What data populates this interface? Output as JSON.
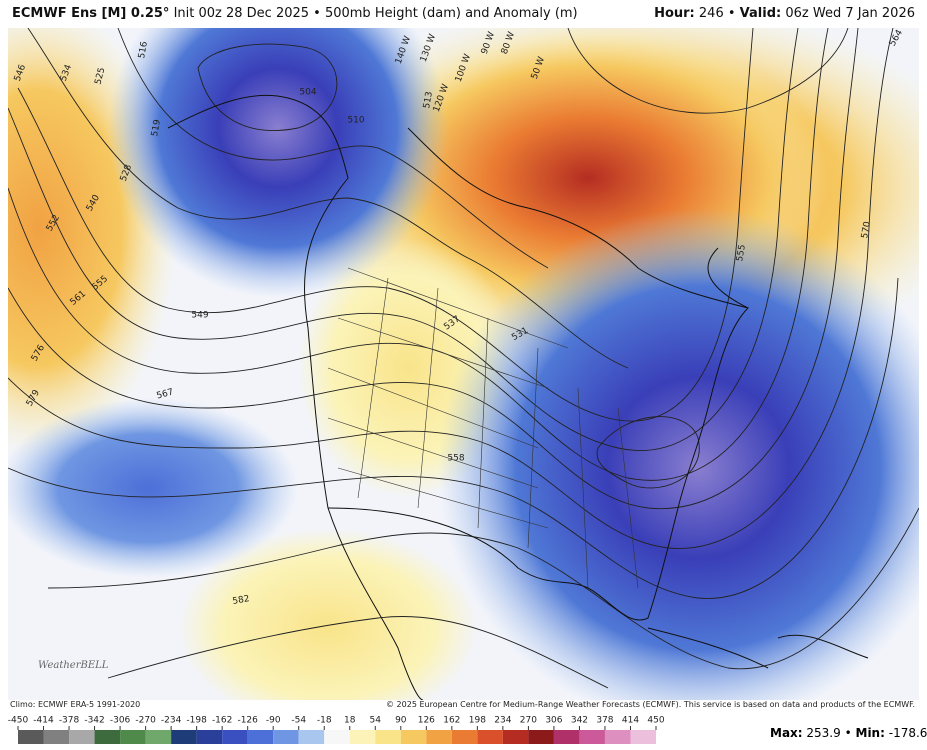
{
  "header": {
    "model": "ECMWF Ens [M] 0.25°",
    "init": "Init 00z 28 Dec 2025 • 500mb Height (dam) and Anomaly (m)",
    "hour_label": "Hour:",
    "hour": "246",
    "valid_label": "Valid:",
    "valid": "06z Wed 7 Jan 2026"
  },
  "map": {
    "contour_labels": [
      "546",
      "534",
      "525",
      "516",
      "519",
      "528",
      "540",
      "552",
      "555",
      "561",
      "576",
      "579",
      "549",
      "567",
      "582",
      "504",
      "510",
      "513",
      "537",
      "531",
      "558",
      "564",
      "570",
      "555"
    ],
    "longitude_labels": [
      "140 W",
      "130 W",
      "120 W",
      "100 W",
      "90 W",
      "80 W",
      "50 W"
    ],
    "logo": "WeatherBELL"
  },
  "footer": {
    "climo": "Climo: ECMWF ERA-5 1991-2020",
    "copyright": "© 2025 European Centre for Medium-Range Weather Forecasts (ECMWF). This service is based on data and products of the ECMWF.",
    "max_label": "Max:",
    "max": "253.9",
    "separator": "•",
    "min_label": "Min:",
    "min": "-178.6"
  },
  "colorbar": {
    "ticks": [
      -450,
      -414,
      -378,
      -342,
      -306,
      -270,
      -234,
      -198,
      -162,
      -126,
      -90,
      -54,
      -18,
      18,
      54,
      90,
      126,
      162,
      198,
      234,
      270,
      306,
      342,
      378,
      414,
      450
    ],
    "colors": [
      "#5a5a5a",
      "#808080",
      "#a8a8a8",
      "#3d6b3d",
      "#4f8a4a",
      "#6fa86a",
      "#1e3c78",
      "#2a3f9a",
      "#3a4fc0",
      "#4d6fd8",
      "#6f96e2",
      "#a9c6ef",
      "#f7f7f7",
      "#fbf3b8",
      "#f9e48a",
      "#f6c860",
      "#f1a243",
      "#ea7b32",
      "#d9502a",
      "#b52d22",
      "#8c1a1a",
      "#b0306a",
      "#cc5a9a",
      "#dd8fc0",
      "#ecc0dc"
    ]
  }
}
